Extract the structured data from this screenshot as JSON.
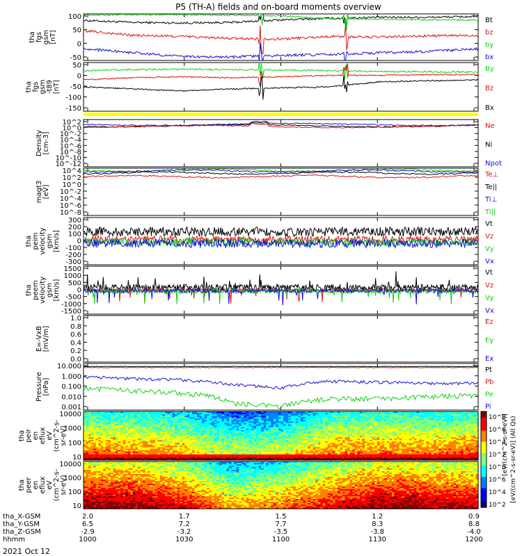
{
  "colors": {
    "black": "#000000",
    "red": "#e01010",
    "blue": "#1010d0",
    "green": "#10d010",
    "yellow": "#ffff00"
  },
  "chart_data": {
    "type": "line",
    "title": "P5 (TH-A) fields and on-board moments overview",
    "date": "2021 Oct 12",
    "x_axis": {
      "row_labels": [
        "tha_X-GSM",
        "tha_Y-GSM",
        "tha_Z-GSM",
        "hhmm"
      ],
      "ticks": [
        {
          "x": "2.0",
          "y": "6.5",
          "z": "-2.9",
          "hhmm": "1000"
        },
        {
          "x": "1.7",
          "y": "7.2",
          "z": "-3.2",
          "hhmm": "1030"
        },
        {
          "x": "1.5",
          "y": "7.7",
          "z": "-3.5",
          "hhmm": "1100"
        },
        {
          "x": "1.2",
          "y": "8.3",
          "z": "-3.8",
          "hhmm": "1130"
        },
        {
          "x": "0.9",
          "y": "8.8",
          "z": "-4.0",
          "hhmm": "1200"
        }
      ]
    },
    "panels": [
      {
        "id": "fgs",
        "ylabel": [
          "tha",
          "fgs",
          "gsm",
          "[nT]"
        ],
        "yticks": [
          "100",
          "50",
          "0",
          "-50"
        ],
        "ylim": [
          -75,
          105
        ],
        "legend": [
          {
            "name": "Bt",
            "color": "#000000"
          },
          {
            "name": "bz",
            "color": "#e01010"
          },
          {
            "name": "by",
            "color": "#10d010"
          },
          {
            "name": "bx",
            "color": "#1010d0"
          }
        ],
        "series": [
          {
            "name": "Bt",
            "level": [
              80,
              72,
              70,
              72,
              82,
              88,
              92,
              92,
              95
            ],
            "noise": 4
          },
          {
            "name": "bz",
            "level": [
              40,
              22,
              18,
              10,
              8,
              18,
              15,
              20,
              22
            ],
            "noise": 5
          },
          {
            "name": "by",
            "level": [
              100,
              102,
              102,
              100,
              98,
              85,
              85,
              82,
              82
            ],
            "noise": 3
          },
          {
            "name": "bx",
            "level": [
              -30,
              -45,
              -60,
              -62,
              -55,
              -52,
              -45,
              -40,
              -30
            ],
            "noise": 5
          }
        ]
      },
      {
        "id": "fgs_t89",
        "ylabel": [
          "tha",
          "fgs",
          "gsm",
          "-t89",
          "[nT]"
        ],
        "yticks": [
          "50",
          "0",
          "-50",
          "-100",
          "-150"
        ],
        "ylim": [
          -175,
          65
        ],
        "legend": [
          {
            "name": "By",
            "color": "#10d010"
          },
          {
            "name": "Bz",
            "color": "#e01010"
          },
          {
            "name": "Bx",
            "color": "#000000"
          }
        ],
        "series": [
          {
            "name": "By",
            "level": [
              25,
              30,
              32,
              30,
              28,
              25,
              20,
              20,
              18
            ],
            "noise": 4
          },
          {
            "name": "Bz",
            "level": [
              -20,
              -10,
              -5,
              -10,
              -5,
              2,
              2,
              5,
              5
            ],
            "noise": 3
          },
          {
            "name": "Bx",
            "level": [
              -55,
              -65,
              -75,
              -65,
              -60,
              -55,
              -30,
              -25,
              -20
            ],
            "noise": 3
          }
        ]
      },
      {
        "id": "density",
        "ylabel": [
          "Density",
          "[cm-3]"
        ],
        "yticks": [
          "10^2",
          "10^0",
          "10^-2",
          "10^-4",
          "10^-6",
          "10^-8",
          "10^-10",
          "10^-12"
        ],
        "legend": [
          {
            "name": "Ne",
            "color": "#e01010"
          },
          {
            "name": "Ni",
            "color": "#000000"
          },
          {
            "name": "Npot",
            "color": "#1010d0"
          }
        ]
      },
      {
        "id": "temperature",
        "ylabel": [
          "magt3",
          "[eV]"
        ],
        "yticks": [
          "10^4",
          "10^2",
          "10^0",
          "10^-2",
          "10^-4",
          "10^-6",
          "10^-8"
        ],
        "legend": [
          {
            "name": "Te⊥",
            "color": "#e01010"
          },
          {
            "name": "Te||",
            "color": "#000000"
          },
          {
            "name": "Ti⊥",
            "color": "#1010d0"
          },
          {
            "name": "Ti||",
            "color": "#10d010"
          }
        ]
      },
      {
        "id": "peim",
        "ylabel": [
          "tha",
          "peim",
          "velocity",
          "gsm",
          "[km/s]"
        ],
        "yticks": [
          "300",
          "200",
          "100",
          "0",
          "-100",
          "-200",
          "-300"
        ],
        "ylim": [
          -300,
          300
        ],
        "legend": [
          {
            "name": "Vt",
            "color": "#000000"
          },
          {
            "name": "Vz",
            "color": "#e01010"
          },
          {
            "name": "Vy",
            "color": "#10d010"
          },
          {
            "name": "Vx",
            "color": "#1010d0"
          }
        ]
      },
      {
        "id": "peem",
        "ylabel": [
          "tha",
          "peem",
          "velocity",
          "gsm",
          "[km/s]"
        ],
        "yticks": [
          "1500",
          "1000",
          "500",
          "0",
          "-500",
          "-1000",
          "-1500"
        ],
        "ylim": [
          -1500,
          1500
        ],
        "legend": [
          {
            "name": "Vt",
            "color": "#000000"
          },
          {
            "name": "Vz",
            "color": "#e01010"
          },
          {
            "name": "Vy",
            "color": "#10d010"
          },
          {
            "name": "Vx",
            "color": "#1010d0"
          }
        ]
      },
      {
        "id": "efield",
        "ylabel": [
          "E=-VxB",
          "[mV/m]"
        ],
        "yticks": [
          "1.0",
          "0.8",
          "0.6",
          "0.4",
          "0.2",
          "0.0"
        ],
        "ylim": [
          0,
          1
        ],
        "legend": [
          {
            "name": "Ez",
            "color": "#e01010"
          },
          {
            "name": "Ey",
            "color": "#10d010"
          },
          {
            "name": "Ex",
            "color": "#1010d0"
          }
        ]
      },
      {
        "id": "pressure",
        "ylabel": [
          "Pressure",
          "[nPa]"
        ],
        "yticks": [
          "10.000",
          "1.000",
          "0.100",
          "0.010",
          "0.001"
        ],
        "ylim": [
          0.001,
          10
        ],
        "legend": [
          {
            "name": "Pt",
            "color": "#000000"
          },
          {
            "name": "Pb",
            "color": "#e01010"
          },
          {
            "name": "Pe",
            "color": "#10d010"
          },
          {
            "name": "Pi",
            "color": "#1010d0"
          }
        ]
      },
      {
        "id": "peir",
        "ylabel": [
          "tha",
          "peir",
          "en",
          "eflux",
          "eV",
          "(cm^2-s-",
          "sr-eV)"
        ],
        "yticks": [
          "10000",
          "1000",
          "100",
          "10"
        ]
      },
      {
        "id": "peer",
        "ylabel": [
          "tha",
          "peer",
          "en",
          "eflux",
          "eV",
          "(cm^2-s-",
          "sr-eV)"
        ],
        "yticks": [
          "10000",
          "1000",
          "100",
          "10"
        ]
      }
    ],
    "colorbar": {
      "ticks": [
        "10^8",
        "10^6",
        "10^4",
        "10^2",
        "10^8",
        "10^6",
        "10^4",
        "10^2"
      ],
      "label": "[eV/(cm^2-s-sr-eV)] (All Qs)",
      "label2": "[eV/(cm^2-s-sr-eV)]"
    }
  }
}
